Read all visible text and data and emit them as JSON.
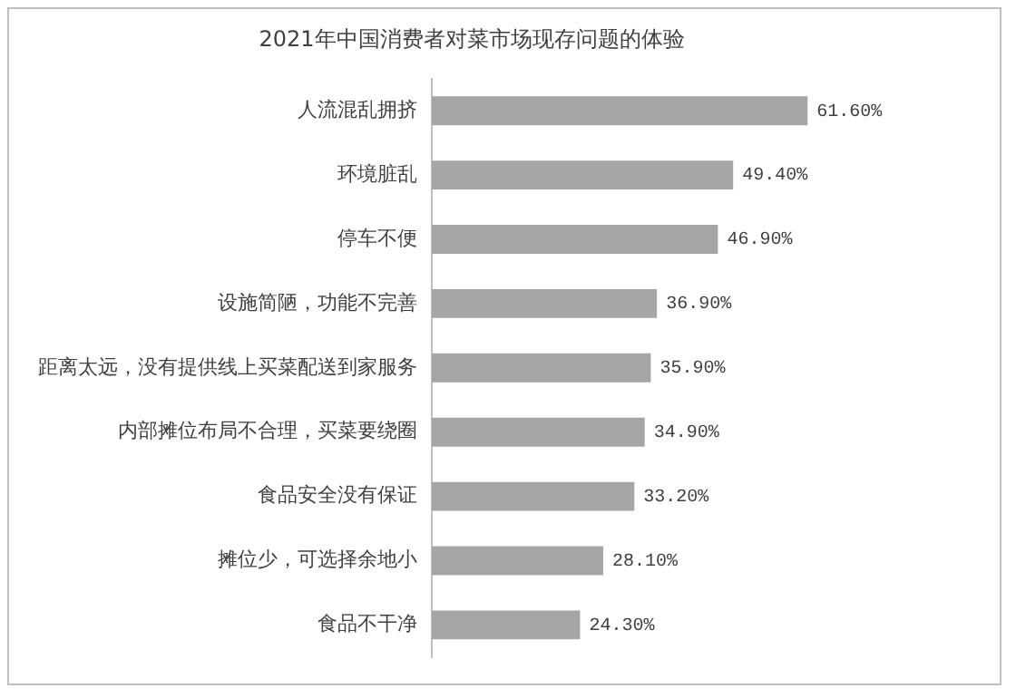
{
  "chart_data": {
    "type": "bar",
    "orientation": "horizontal",
    "title": "2021年中国消费者对菜市场现存问题的体验",
    "categories": [
      "人流混乱拥挤",
      "环境脏乱",
      "停车不便",
      "设施简陋，功能不完善",
      "距离太远，没有提供线上买菜配送到家服务",
      "内部摊位布局不合理，买菜要绕圈",
      "食品安全没有保证",
      "摊位少，可选择余地小",
      "食品不干净"
    ],
    "values": [
      61.6,
      49.4,
      46.9,
      36.9,
      35.9,
      34.9,
      33.2,
      28.1,
      24.3
    ],
    "value_labels": [
      "61.60%",
      "49.40%",
      "46.90%",
      "36.90%",
      "35.90%",
      "34.90%",
      "33.20%",
      "28.10%",
      "24.30%"
    ],
    "color": "#a5a5a5",
    "grid": false,
    "legend": false
  }
}
